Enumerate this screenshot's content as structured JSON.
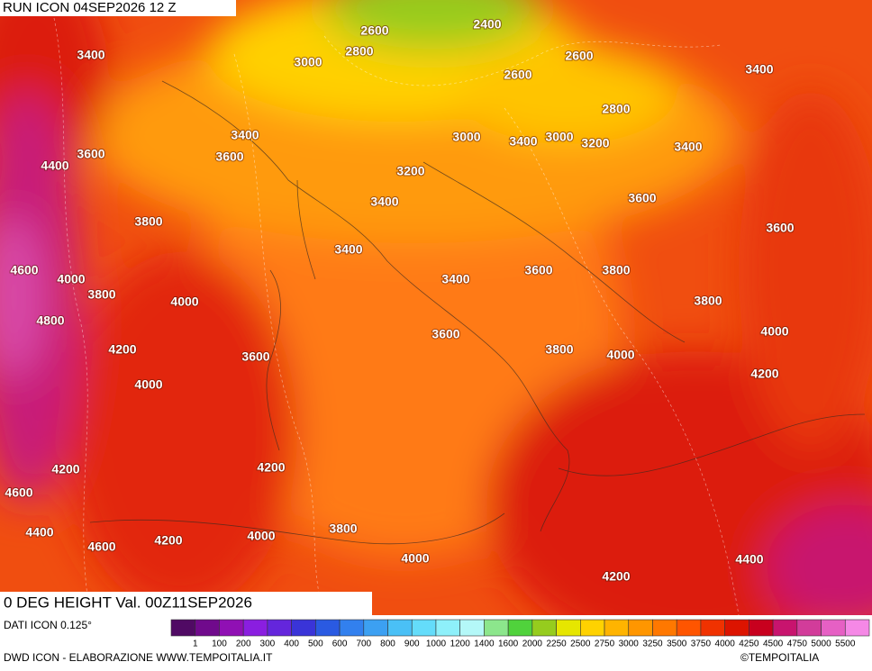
{
  "header": {
    "run": "RUN ICON 04SEP2026 12 Z",
    "title": "0 DEG HEIGHT Val. 00Z11SEP2026"
  },
  "map": {
    "contour_labels": [
      2400,
      2600,
      2800,
      3000,
      3400,
      2600,
      2600,
      3400,
      2800,
      3400,
      3000,
      3400,
      3000,
      3200,
      3400,
      4400,
      3600,
      3600,
      3200,
      3400,
      3600,
      3800,
      3600,
      3400,
      4600,
      4000,
      3800,
      3600,
      3800,
      3400,
      4000,
      3800,
      4800,
      3600,
      4000,
      4200,
      3800,
      4000,
      3600,
      4200,
      4000,
      4200,
      4200,
      4600,
      4400,
      3800,
      4600,
      4200,
      4000,
      4000,
      4400,
      4200
    ]
  },
  "legend": {
    "source": "DATI ICON 0.125°",
    "labels": [
      1,
      100,
      200,
      300,
      400,
      500,
      600,
      700,
      800,
      900,
      1000,
      1200,
      1400,
      1600,
      2000,
      2250,
      2500,
      2750,
      3000,
      3250,
      3500,
      3750,
      4000,
      4250,
      4500,
      4750,
      5000,
      5500
    ]
  },
  "footer": {
    "credit": "DWD ICON - ELABORAZIONE WWW.TEMPOITALIA.IT",
    "copyright": "©TEMPOITALIA"
  }
}
